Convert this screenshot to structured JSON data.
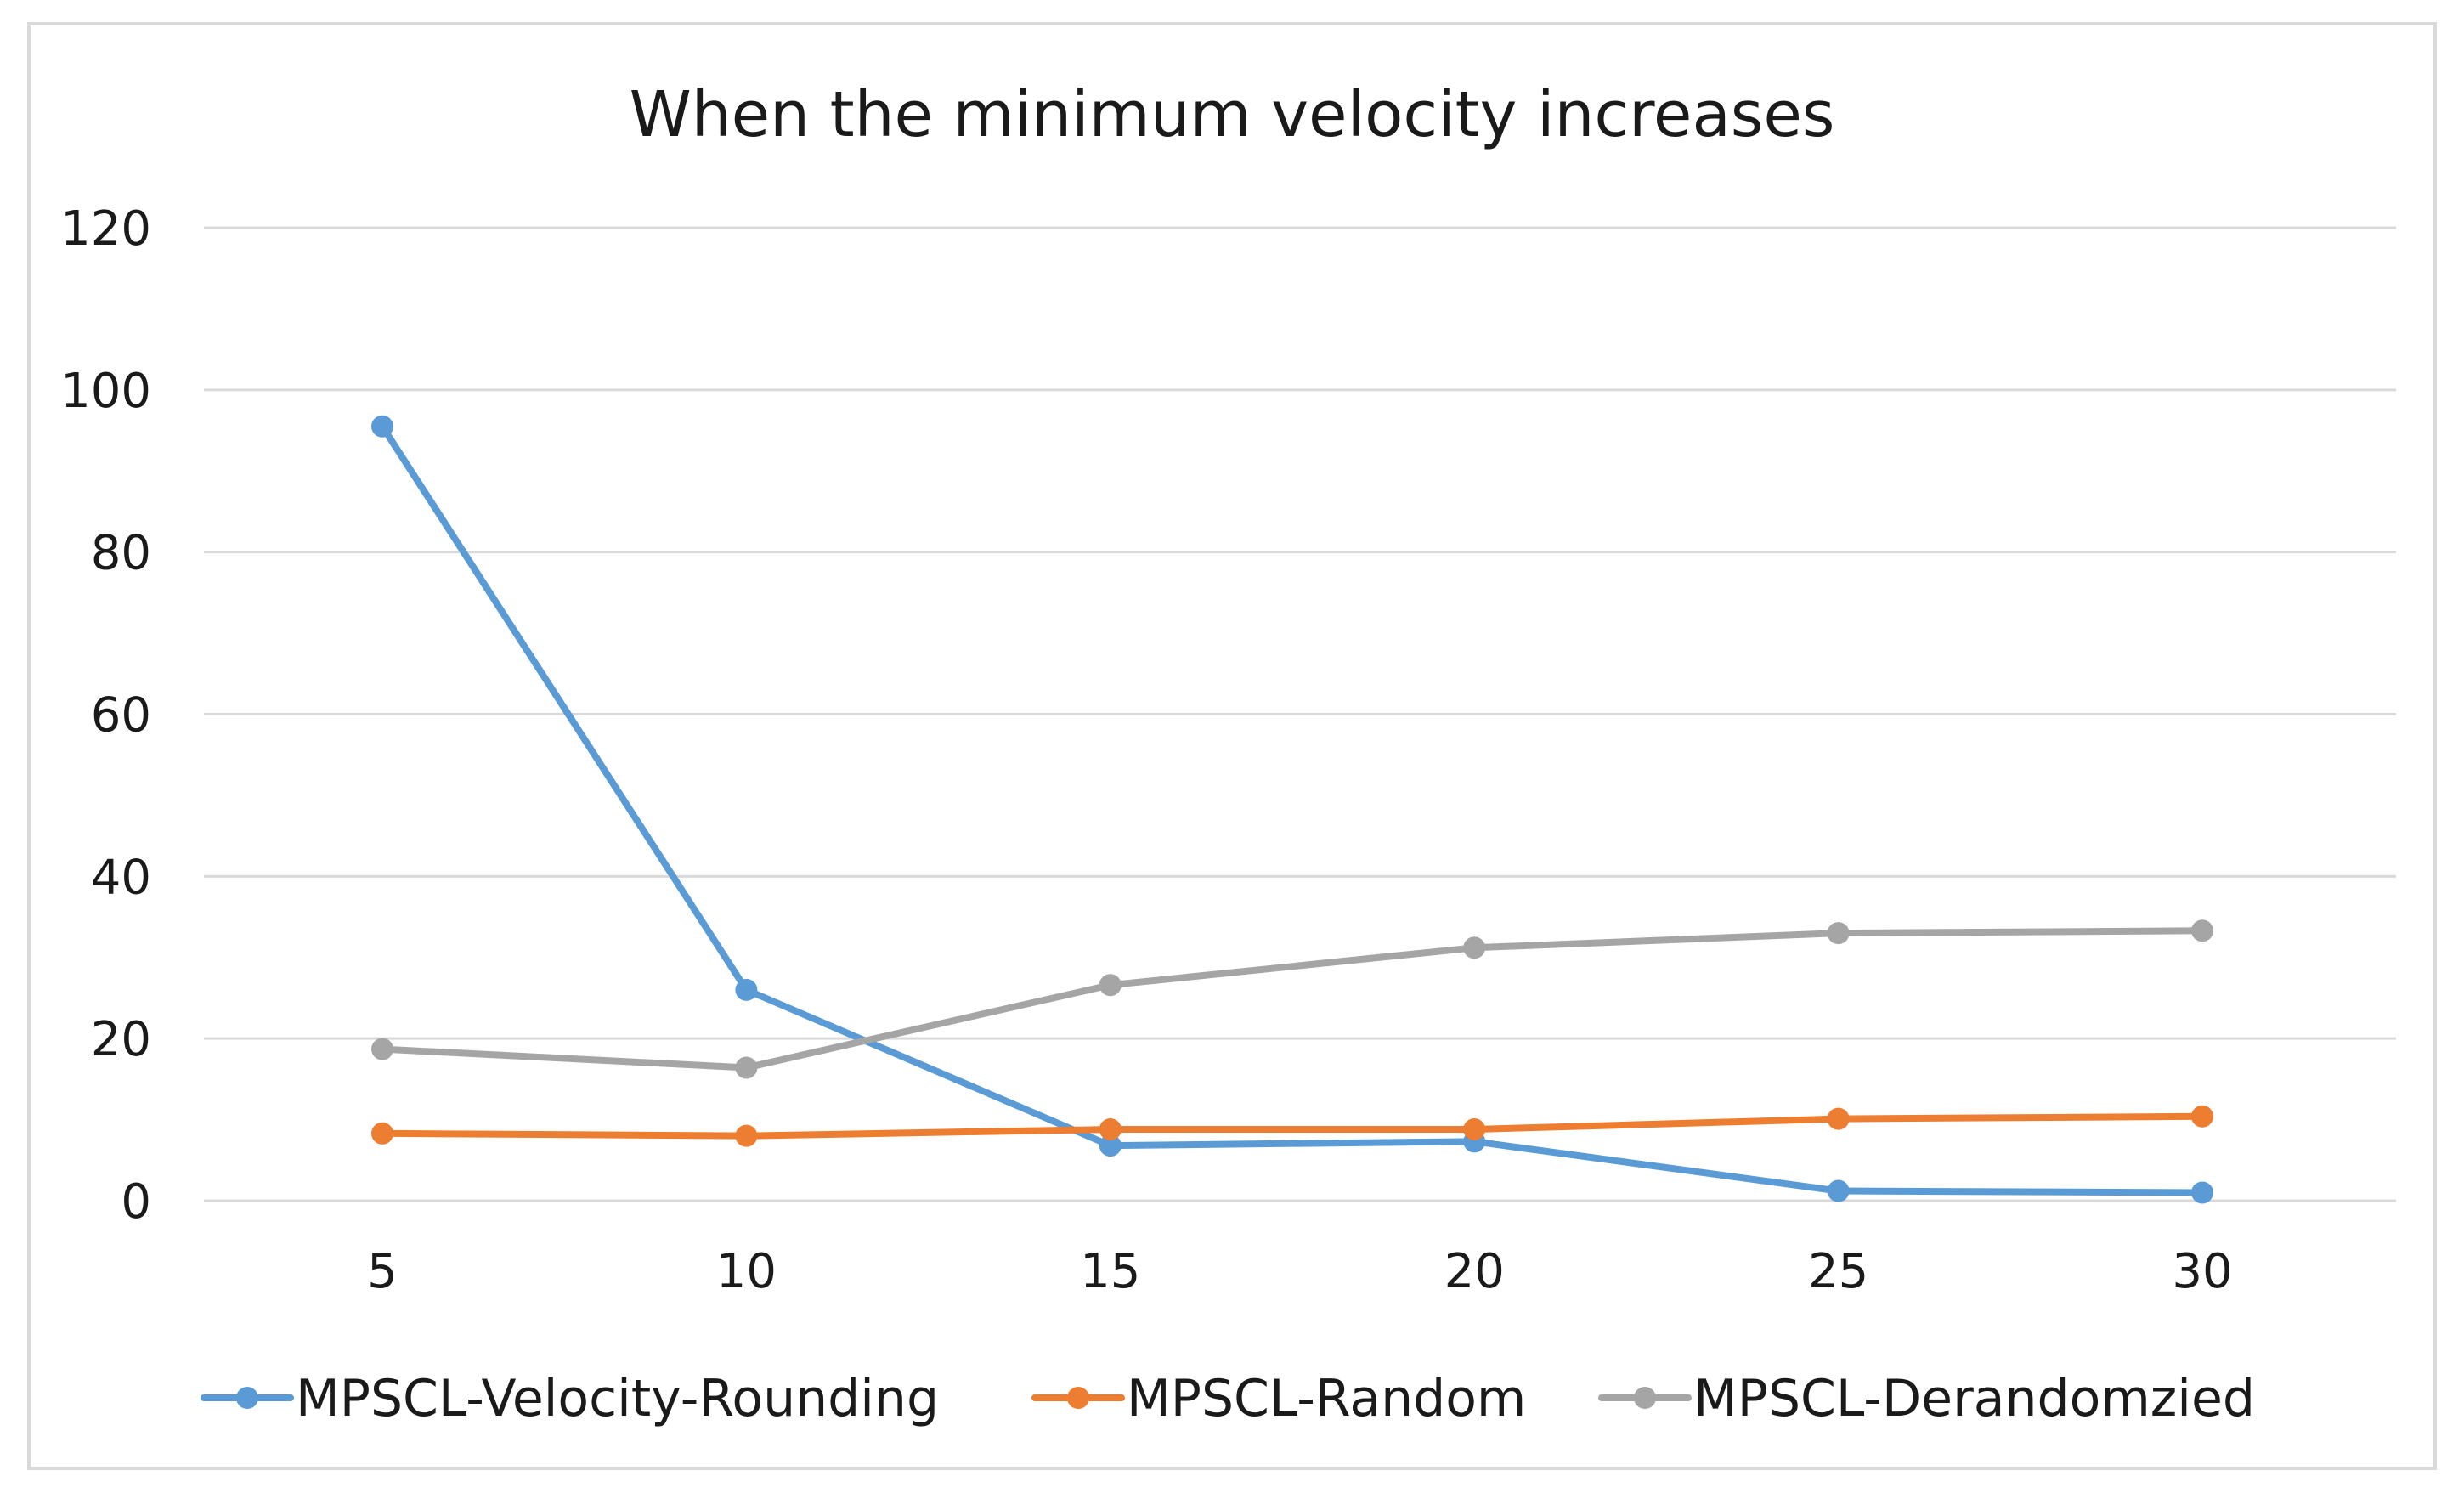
{
  "chart_data": {
    "type": "line",
    "title": "When the minimum velocity increases",
    "xlabel": "",
    "ylabel": "",
    "x": [
      5,
      10,
      15,
      20,
      25,
      30
    ],
    "ylim": [
      0,
      120
    ],
    "yticks": [
      0,
      20,
      40,
      60,
      80,
      100,
      120
    ],
    "grid": true,
    "legend_position": "bottom",
    "series": [
      {
        "name": "MPSCL-Velocity-Rounding",
        "color": "#5b9bd5",
        "values": [
          95.5,
          26,
          6.8,
          7.3,
          1.2,
          1.0
        ]
      },
      {
        "name": "MPSCL-Random",
        "color": "#ed7d31",
        "values": [
          8.3,
          8.0,
          8.8,
          8.8,
          10.1,
          10.4
        ]
      },
      {
        "name": "MPSCL-Derandomzied",
        "color": "#a5a5a5",
        "values": [
          18.7,
          16.4,
          26.6,
          31.2,
          33.0,
          33.3
        ]
      }
    ]
  }
}
